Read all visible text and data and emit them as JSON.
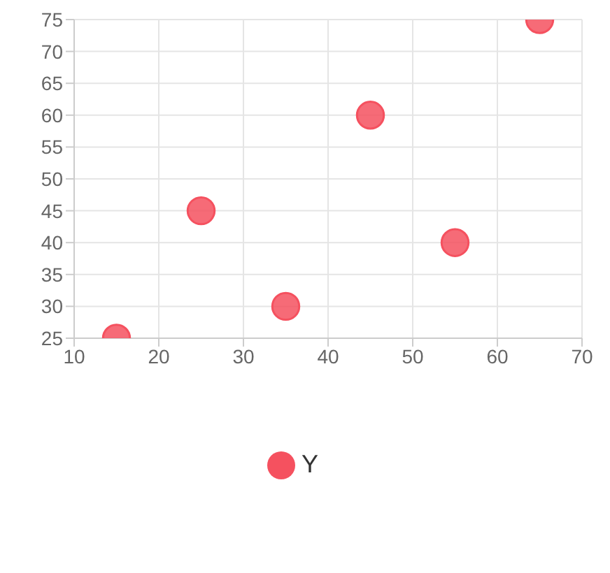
{
  "chart_data": {
    "type": "scatter",
    "x": [
      15,
      25,
      35,
      45,
      55,
      65
    ],
    "series": [
      {
        "name": "Y",
        "color": "#f5515f",
        "values": [
          25,
          45,
          30,
          60,
          40,
          75
        ]
      }
    ],
    "xlim": [
      10,
      70
    ],
    "xticks": [
      10,
      20,
      30,
      40,
      50,
      60,
      70
    ],
    "ylim": [
      25,
      75
    ],
    "yticks": [
      25,
      30,
      35,
      40,
      45,
      50,
      55,
      60,
      65,
      70,
      75
    ],
    "grid": true,
    "legend": "bottom",
    "marker": "circle"
  }
}
